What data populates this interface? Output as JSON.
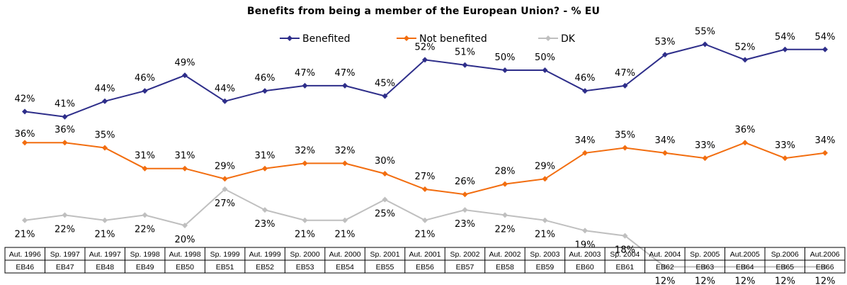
{
  "chart_data": {
    "type": "line",
    "title": "Benefits from being a member of the European Union? - % EU",
    "categories": [
      "Aut. 1996",
      "Sp. 1997",
      "Aut. 1997",
      "Sp. 1998",
      "Aut. 1998",
      "Sp. 1999",
      "Aut. 1999",
      "Sp. 2000",
      "Aut. 2000",
      "Sp. 2001",
      "Aut. 2001",
      "Sp. 2002",
      "Aut. 2002",
      "Sp. 2003",
      "Aut. 2003",
      "Sp. 2004",
      "Aut. 2004",
      "Sp. 2005",
      "Aut.2005",
      "Sp.2006",
      "Aut.2006"
    ],
    "survey_codes": [
      "EB46",
      "EB47",
      "EB48",
      "EB49",
      "EB50",
      "EB51",
      "EB52",
      "EB53",
      "EB54",
      "EB55",
      "EB56",
      "EB57",
      "EB58",
      "EB59",
      "EB60",
      "EB61",
      "EB62",
      "EB63",
      "EB64",
      "EB65",
      "EB66"
    ],
    "series": [
      {
        "name": "Benefited",
        "color": "#2e2e8a",
        "values": [
          42,
          41,
          44,
          46,
          49,
          44,
          46,
          47,
          47,
          45,
          52,
          51,
          50,
          50,
          46,
          47,
          53,
          55,
          52,
          54,
          54
        ]
      },
      {
        "name": "Not benefited",
        "color": "#f26d0f",
        "values": [
          36,
          36,
          35,
          31,
          31,
          29,
          31,
          32,
          32,
          30,
          27,
          26,
          28,
          29,
          34,
          35,
          34,
          33,
          36,
          33,
          34
        ]
      },
      {
        "name": "DK",
        "color": "#bfbfbf",
        "values": [
          21,
          22,
          21,
          22,
          20,
          27,
          23,
          21,
          21,
          25,
          21,
          23,
          22,
          21,
          19,
          18,
          12,
          12,
          12,
          12,
          12
        ]
      }
    ],
    "value_suffix": "%",
    "legend_position": "top",
    "grid": false
  }
}
